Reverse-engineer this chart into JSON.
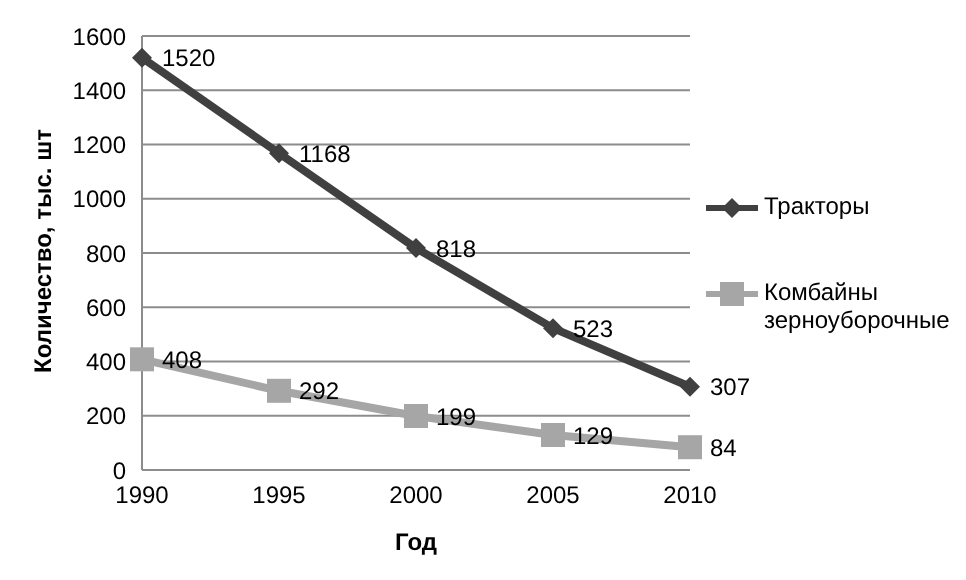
{
  "chart_data": {
    "type": "line",
    "xlabel": "Год",
    "ylabel": "Количество, тыс. шт",
    "categories": [
      "1990",
      "1995",
      "2000",
      "2005",
      "2010"
    ],
    "series": [
      {
        "name": "Тракторы",
        "color": "#404040",
        "marker": "diamond",
        "values": [
          1520,
          1168,
          818,
          523,
          307
        ]
      },
      {
        "name": "Комбайны зерноуборочные",
        "color": "#a6a6a6",
        "marker": "square",
        "values": [
          408,
          292,
          199,
          129,
          84
        ]
      }
    ],
    "ylim": [
      0,
      1600
    ],
    "yticks": [
      0,
      200,
      400,
      600,
      800,
      1000,
      1200,
      1400,
      1600
    ],
    "grid": "y",
    "legend": "right",
    "data_labels": true
  }
}
